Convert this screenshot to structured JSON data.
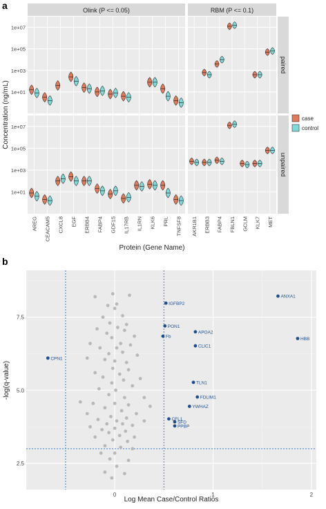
{
  "panel_a": {
    "label": "a",
    "strips": [
      "Olink (P <= 0.05)",
      "RBM (P <= 0.1)"
    ],
    "row_strips": [
      "paired",
      "unpaired"
    ],
    "ylabel": "Concentration (ng/mL)",
    "xlabel": "Protein (Gene Name)",
    "yticks": [
      "1e+01",
      "1e+03",
      "1e+05",
      "1e+07"
    ],
    "legend": {
      "items": [
        {
          "label": "case",
          "color": "#e07a5a"
        },
        {
          "label": "control",
          "color": "#7fd9d9"
        }
      ]
    }
  },
  "panel_b": {
    "label": "b",
    "xlabel": "Log Mean Case/Control Ratios",
    "ylabel": "-log(q-value)"
  },
  "chart_data": [
    {
      "type": "violin",
      "facets_x": [
        {
          "name": "Olink (P <= 0.05)",
          "categories": [
            "AREG",
            "CEACAM5",
            "CXCL8",
            "EGF",
            "ERBB4",
            "FABP4",
            "GDF15",
            "IL17RB",
            "IL1RN",
            "KLK6",
            "PRL",
            "TNFSF8"
          ]
        },
        {
          "name": "RBM (P <= 0.1)",
          "categories": [
            "AKR1B1",
            "ERBB3",
            "FABP4",
            "FBLN1",
            "GCLM",
            "KLK7",
            "MET"
          ]
        }
      ],
      "facets_y": [
        "paired",
        "unpaired"
      ],
      "y_scale": "log10",
      "ylim_exponent": [
        -1,
        8
      ],
      "series": [
        {
          "name": "case",
          "color": "#e07a5a"
        },
        {
          "name": "control",
          "color": "#7fd9d9"
        }
      ],
      "medians_log10": {
        "paired": {
          "Olink (P <= 0.05)": {
            "case": [
              1.2,
              0.5,
              1.6,
              2.4,
              1.4,
              1.0,
              0.8,
              0.6,
              null,
              1.9,
              1.3,
              0.2
            ],
            "control": [
              0.9,
              0.2,
              null,
              2.0,
              1.3,
              1.1,
              0.9,
              0.5,
              null,
              1.9,
              0.6,
              0.0
            ]
          },
          "RBM (P <= 0.1)": {
            "case": [
              null,
              2.8,
              3.6,
              7.1,
              null,
              2.6,
              4.7
            ],
            "control": [
              null,
              2.6,
              4.0,
              7.2,
              null,
              2.6,
              4.8
            ]
          }
        },
        "unpaired": {
          "Olink (P <= 0.05)": {
            "case": [
              0.9,
              0.3,
              2.0,
              2.4,
              2.0,
              1.3,
              0.8,
              0.4,
              1.6,
              1.7,
              1.6,
              0.3
            ],
            "control": [
              0.6,
              0.2,
              2.2,
              2.0,
              2.0,
              1.1,
              1.1,
              0.5,
              1.5,
              1.6,
              0.9,
              0.2
            ]
          },
          "RBM (P <= 0.1)": {
            "case": [
              3.8,
              3.7,
              3.9,
              7.1,
              3.6,
              3.6,
              4.8
            ],
            "control": [
              3.7,
              3.7,
              3.8,
              7.2,
              3.5,
              3.6,
              4.8
            ]
          }
        }
      }
    },
    {
      "type": "scatter",
      "xlabel": "Log Mean Case/Control Ratios",
      "ylabel": "-log(q-value)",
      "xlim": [
        -0.9,
        2.05
      ],
      "ylim": [
        1.6,
        9.1
      ],
      "xticks": [
        0,
        1,
        2
      ],
      "yticks": [
        2.5,
        5.0,
        7.5
      ],
      "reference_lines": {
        "x": [
          -0.5,
          0.5
        ],
        "y": [
          3.0
        ]
      },
      "highlight_color": "#1f4e8c",
      "labeled_points": [
        {
          "label": "ANXA1",
          "x": 1.66,
          "y": 8.22
        },
        {
          "label": "IGFBP2",
          "x": 0.52,
          "y": 7.98
        },
        {
          "label": "PON1",
          "x": 0.51,
          "y": 7.2
        },
        {
          "label": "APOA2",
          "x": 0.82,
          "y": 7.0
        },
        {
          "label": "Fb",
          "x": 0.49,
          "y": 6.85
        },
        {
          "label": "HBB",
          "x": 1.86,
          "y": 6.77
        },
        {
          "label": "CLIC1",
          "x": 0.82,
          "y": 6.52
        },
        {
          "label": "CPN1",
          "x": -0.68,
          "y": 6.1
        },
        {
          "label": "TLN1",
          "x": 0.8,
          "y": 5.27
        },
        {
          "label": "FDLIM1",
          "x": 0.84,
          "y": 4.77
        },
        {
          "label": "YWHAZ",
          "x": 0.76,
          "y": 4.45
        },
        {
          "label": "CFL1",
          "x": 0.55,
          "y": 4.02
        },
        {
          "label": "SFD",
          "x": 0.61,
          "y": 3.92
        },
        {
          "label": "PPBP",
          "x": 0.61,
          "y": 3.78
        }
      ],
      "other_points": [
        [
          -0.2,
          8.2
        ],
        [
          -0.02,
          8.3
        ],
        [
          0.15,
          8.25
        ],
        [
          -0.07,
          7.9
        ],
        [
          0.02,
          7.95
        ],
        [
          0.0,
          7.8
        ],
        [
          -0.12,
          7.5
        ],
        [
          0.08,
          7.55
        ],
        [
          -0.05,
          7.3
        ],
        [
          0.12,
          7.25
        ],
        [
          -0.18,
          7.1
        ],
        [
          0.03,
          7.15
        ],
        [
          0.1,
          7.05
        ],
        [
          -0.08,
          6.95
        ],
        [
          0.2,
          6.85
        ],
        [
          -0.03,
          6.8
        ],
        [
          -0.25,
          6.6
        ],
        [
          0.06,
          6.6
        ],
        [
          0.16,
          6.55
        ],
        [
          -0.15,
          6.45
        ],
        [
          0.02,
          6.45
        ],
        [
          0.08,
          6.3
        ],
        [
          -0.06,
          6.25
        ],
        [
          0.23,
          6.2
        ],
        [
          -0.28,
          6.1
        ],
        [
          -0.1,
          6.05
        ],
        [
          0.0,
          6.0
        ],
        [
          0.12,
          5.95
        ],
        [
          -0.02,
          5.75
        ],
        [
          0.14,
          5.7
        ],
        [
          -0.2,
          5.6
        ],
        [
          0.05,
          5.55
        ],
        [
          -0.12,
          5.45
        ],
        [
          0.26,
          5.4
        ],
        [
          0.09,
          5.35
        ],
        [
          -0.03,
          5.25
        ],
        [
          0.18,
          5.15
        ],
        [
          -0.16,
          5.05
        ],
        [
          0.01,
          5.0
        ],
        [
          -0.06,
          4.85
        ],
        [
          0.1,
          4.75
        ],
        [
          0.3,
          4.75
        ],
        [
          -0.35,
          4.6
        ],
        [
          -0.22,
          4.55
        ],
        [
          0.0,
          4.55
        ],
        [
          0.14,
          4.5
        ],
        [
          0.36,
          4.45
        ],
        [
          -0.1,
          4.4
        ],
        [
          0.07,
          4.3
        ],
        [
          -0.28,
          4.2
        ],
        [
          0.22,
          4.2
        ],
        [
          -0.04,
          4.1
        ],
        [
          0.12,
          4.05
        ],
        [
          -0.17,
          4.0
        ],
        [
          0.02,
          3.95
        ],
        [
          0.3,
          3.95
        ],
        [
          -0.08,
          3.85
        ],
        [
          0.08,
          3.85
        ],
        [
          -0.25,
          3.75
        ],
        [
          0.18,
          3.8
        ],
        [
          -0.13,
          3.65
        ],
        [
          0.0,
          3.7
        ],
        [
          0.11,
          3.6
        ],
        [
          -0.06,
          3.55
        ],
        [
          0.05,
          3.45
        ],
        [
          -0.2,
          3.4
        ],
        [
          0.2,
          3.4
        ],
        [
          -0.02,
          3.3
        ],
        [
          0.13,
          3.25
        ],
        [
          -0.1,
          3.1
        ],
        [
          0.06,
          3.05
        ],
        [
          0.18,
          3.0
        ],
        [
          -0.14,
          2.85
        ],
        [
          0.0,
          2.85
        ],
        [
          -0.05,
          2.65
        ],
        [
          0.14,
          2.6
        ],
        [
          0.02,
          2.4
        ],
        [
          -0.1,
          2.2
        ],
        [
          0.1,
          2.15
        ],
        [
          -0.03,
          2.0
        ]
      ]
    }
  ]
}
